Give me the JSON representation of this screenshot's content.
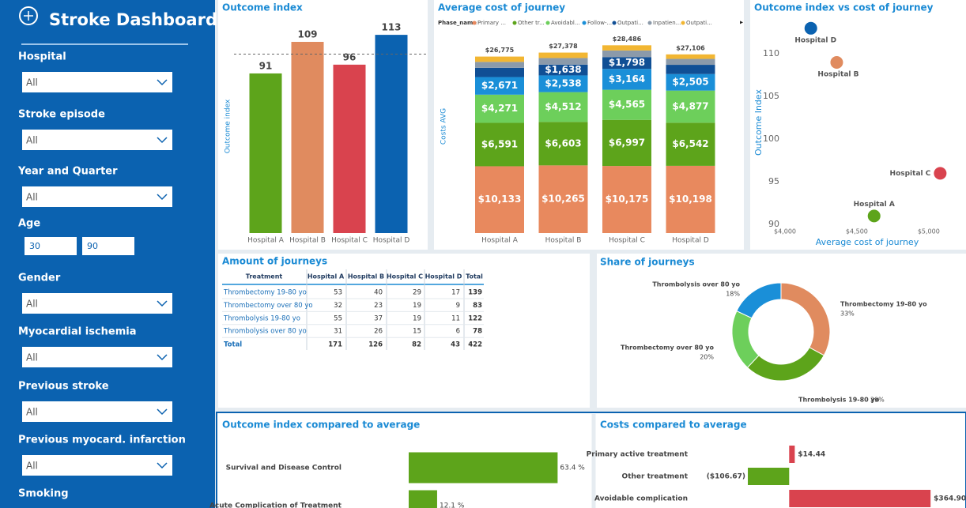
{
  "sidebar": {
    "title": "Stroke Dashboard",
    "filters": [
      {
        "label": "Hospital",
        "value": "All"
      },
      {
        "label": "Stroke episode",
        "value": "All"
      },
      {
        "label": "Year and Quarter",
        "value": "All"
      },
      {
        "label": "Age",
        "range": [
          30,
          90
        ]
      },
      {
        "label": "Gender",
        "value": "All"
      },
      {
        "label": "Myocardial ischemia",
        "value": "All"
      },
      {
        "label": "Previous stroke",
        "value": "All"
      },
      {
        "label": "Previous myocard. infarction",
        "value": "All"
      },
      {
        "label": "Smoking"
      }
    ]
  },
  "chart_data": [
    {
      "type": "bar",
      "title": "Outcome index",
      "y_label": "Outcome index",
      "categories": [
        "Hospital A",
        "Hospital B",
        "Hospital C",
        "Hospital D"
      ],
      "values": [
        91,
        109,
        96,
        113
      ],
      "colors": [
        "#5da41b",
        "#e08b5f",
        "#d9434e",
        "#0b62b0"
      ],
      "average": 102,
      "ylim": [
        0,
        118
      ]
    },
    {
      "type": "stacked_bar",
      "title": "Average cost of journey",
      "y_label": "Costs AVG",
      "legend_title": "Phase_name",
      "categories": [
        "Hospital A",
        "Hospital B",
        "Hospital C",
        "Hospital D"
      ],
      "ylim": [
        0,
        32000
      ],
      "series": [
        {
          "name": "Primary ...",
          "color": "#e8895e",
          "values": [
            10133,
            10265,
            10175,
            10198
          ],
          "value_labels": [
            "$10,133",
            "$10,265",
            "$10,175",
            "$10,198"
          ]
        },
        {
          "name": "Other tr...",
          "color": "#5da41b",
          "values": [
            6591,
            6603,
            6997,
            6542
          ],
          "value_labels": [
            "$6,591",
            "$6,603",
            "$6,997",
            "$6,542"
          ]
        },
        {
          "name": "Avoidabl...",
          "color": "#6dcf5b",
          "values": [
            4271,
            4512,
            4565,
            4877
          ],
          "value_labels": [
            "$4,271",
            "$4,512",
            "$4,565",
            "$4,877"
          ]
        },
        {
          "name": "Follow-...",
          "color": "#1a8fd8",
          "values": [
            2671,
            2538,
            3164,
            2505
          ],
          "value_labels": [
            "$2,671",
            "$2,538",
            "$3,164",
            "$2,505"
          ]
        },
        {
          "name": "Outpati...",
          "color": "#104f95",
          "values": [
            1400,
            1638,
            1798,
            1400
          ],
          "value_labels": [
            null,
            "$1,638",
            "$1,798",
            null
          ]
        },
        {
          "name": "Inpatien...",
          "color": "#8b9aaa",
          "values": [
            900,
            1000,
            1000,
            900
          ]
        },
        {
          "name": "Outpati...",
          "color": "#f2b632",
          "values": [
            809,
            822,
            787,
            684
          ]
        }
      ],
      "totals": [
        26775,
        27378,
        28486,
        27106
      ],
      "total_labels": [
        "$26,775",
        "$27,378",
        "$28,486",
        "$27,106"
      ]
    },
    {
      "type": "scatter",
      "title": "Outcome index vs cost of journey",
      "x_label": "Average cost of journey",
      "y_label": "Outcome Index",
      "labels": [
        "Hospital A",
        "Hospital B",
        "Hospital C",
        "Hospital D"
      ],
      "x": [
        4620,
        4360,
        5080,
        4180
      ],
      "values": [
        91,
        109,
        96,
        113
      ],
      "colors": [
        "#5da41b",
        "#e08b5f",
        "#d9434e",
        "#0b62b0"
      ],
      "xlim": [
        4000,
        5100
      ],
      "ylim": [
        89,
        114.5
      ],
      "xticks": [
        {
          "value": 4000,
          "label": "$4,000"
        },
        {
          "value": 4500,
          "label": "$4,500"
        },
        {
          "value": 5000,
          "label": "$5,000"
        }
      ],
      "yticks": [
        90,
        95,
        100,
        105,
        110
      ]
    },
    {
      "type": "donut",
      "title": "Share of journeys",
      "categories": [
        "Thrombectomy 19-80 yo",
        "Thrombolysis 19-80 yo",
        "Thrombectomy over 80 yo",
        "Thrombolysis over 80 yo"
      ],
      "values": [
        33,
        29,
        20,
        18
      ],
      "value_labels": [
        "33%",
        "29%",
        "20%",
        "18%"
      ],
      "colors": [
        "#e08b5f",
        "#5da41b",
        "#6dcf5b",
        "#1a8fd8"
      ]
    },
    {
      "type": "hbar",
      "title": "Outcome index compared to average",
      "categories": [
        "Survival and Disease Control",
        "Acute Complication of Treatment"
      ],
      "values": [
        63.4,
        12.1
      ],
      "value_labels": [
        "63.4 %",
        "12.1 %"
      ],
      "color": "#5da41b",
      "xlim": [
        0,
        70
      ]
    },
    {
      "type": "hbar",
      "title": "Costs compared to average",
      "categories": [
        "Primary active treatment",
        "Other treatment",
        "Avoidable complication"
      ],
      "values": [
        14.44,
        -106.67,
        364.9
      ],
      "value_labels": [
        "$14.44",
        "($106.67)",
        "$364.90"
      ],
      "colors": [
        "#d9434e",
        "#5da41b",
        "#d9434e"
      ],
      "xlim": [
        -480,
        440
      ]
    }
  ],
  "table": {
    "title": "Amount of journeys",
    "columns": [
      "Treatment",
      "Hospital A",
      "Hospital B",
      "Hospital C",
      "Hospital D",
      "Total"
    ],
    "rows": [
      [
        "Thrombectomy 19-80 yo",
        53,
        40,
        29,
        17,
        139
      ],
      [
        "Thrombectomy over 80 yo",
        32,
        23,
        19,
        9,
        83
      ],
      [
        "Thrombolysis 19-80 yo",
        55,
        37,
        19,
        11,
        122
      ],
      [
        "Thrombolysis over 80 yo",
        31,
        26,
        15,
        6,
        78
      ]
    ],
    "total": [
      "Total",
      171,
      126,
      82,
      43,
      422
    ]
  }
}
